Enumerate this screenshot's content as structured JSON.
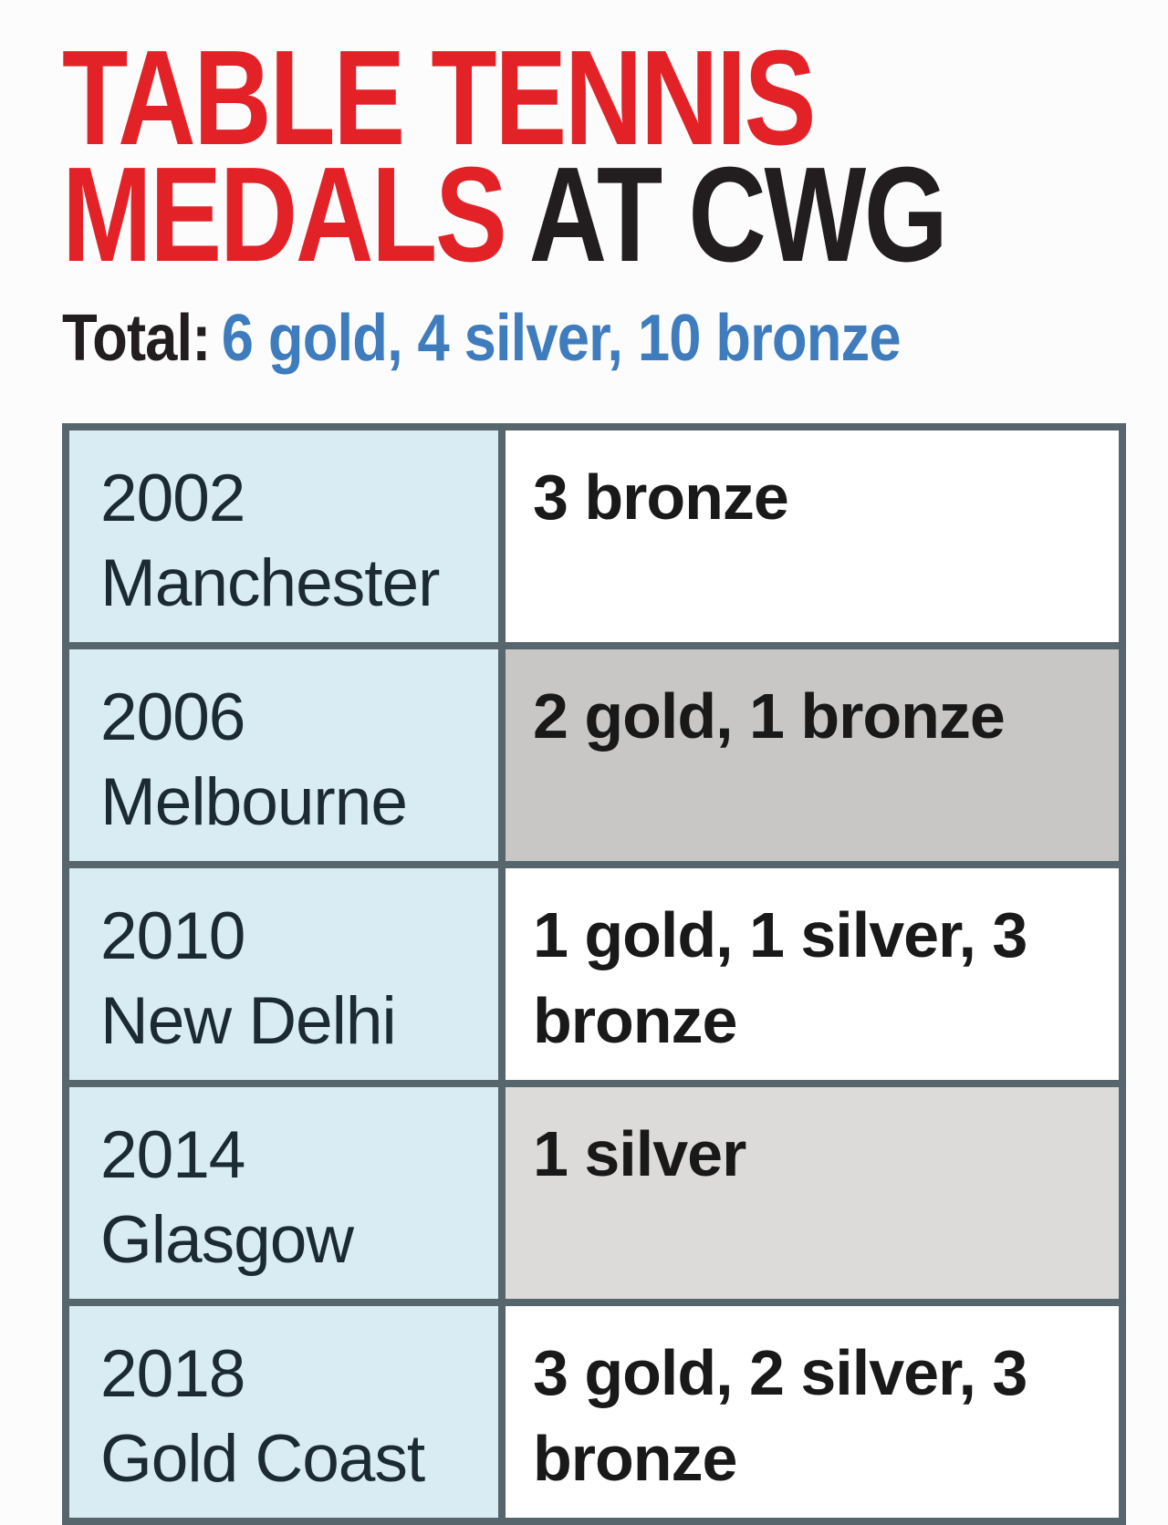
{
  "title": {
    "line1": "TABLE TENNIS",
    "line2_red": "MEDALS",
    "line2_black": " AT CWG"
  },
  "total": {
    "label": "Total:",
    "value": "6 gold, 4 silver, 10 bronze"
  },
  "table": {
    "rows": [
      {
        "year": "2002",
        "city": "Manchester",
        "medals": "3 bronze"
      },
      {
        "year": "2006",
        "city": "Melbourne",
        "medals": "2 gold, 1 bronze"
      },
      {
        "year": "2010",
        "city": "New Delhi",
        "medals": "1 gold, 1 silver, 3 bronze"
      },
      {
        "year": "2014",
        "city": "Glasgow",
        "medals": "1 silver"
      },
      {
        "year": "2018",
        "city": "Gold Coast",
        "medals": "3 gold, 2 silver, 3 bronze"
      }
    ]
  },
  "colors": {
    "headline_red": "#e32228",
    "headline_black": "#221e1f",
    "total_blue": "#3e7cbe",
    "year_column_bg": "#d9ecf4",
    "row_shade_dark": "#c8c7c5",
    "row_shade_light": "#dcdbd9",
    "table_border": "#57666d",
    "page_bg": "#fcfcfc"
  },
  "chart_data": {
    "type": "table",
    "title": "TABLE TENNIS MEDALS AT CWG",
    "subtitle": "Total: 6 gold, 4 silver, 10 bronze",
    "categories": [
      "2002 Manchester",
      "2006 Melbourne",
      "2010 New Delhi",
      "2014 Glasgow",
      "2018 Gold Coast"
    ],
    "series": [
      {
        "name": "gold",
        "values": [
          0,
          2,
          1,
          0,
          3
        ]
      },
      {
        "name": "silver",
        "values": [
          0,
          0,
          1,
          1,
          2
        ]
      },
      {
        "name": "bronze",
        "values": [
          3,
          1,
          3,
          0,
          3
        ]
      }
    ],
    "totals": {
      "gold": 6,
      "silver": 4,
      "bronze": 10
    }
  }
}
